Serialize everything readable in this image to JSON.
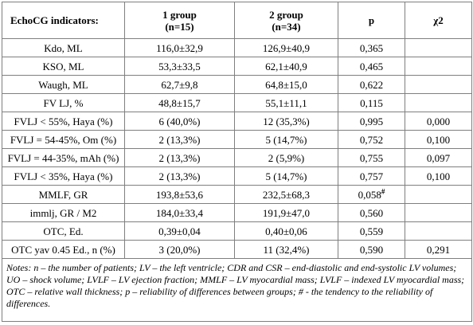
{
  "table": {
    "headers": [
      {
        "line1": "EchoCG indicators:",
        "line2": ""
      },
      {
        "line1": "1 group",
        "line2": "(n=15)"
      },
      {
        "line1": "2 group",
        "line2": "(n=34)"
      },
      {
        "line1": "p",
        "line2": ""
      },
      {
        "line1": "χ2",
        "line2": ""
      }
    ],
    "rows": [
      {
        "indicator": "Kdo, ML",
        "g1": "116,0±32,9",
        "g2": "126,9±40,9",
        "p": "0,365",
        "p_mark": "",
        "chi2": ""
      },
      {
        "indicator": "KSO, ML",
        "g1": "53,3±33,5",
        "g2": "62,1±40,9",
        "p": "0,465",
        "p_mark": "",
        "chi2": ""
      },
      {
        "indicator": "Waugh, ML",
        "g1": "62,7±9,8",
        "g2": "64,8±15,0",
        "p": "0,622",
        "p_mark": "",
        "chi2": ""
      },
      {
        "indicator": "FV LJ, %",
        "g1": "48,8±15,7",
        "g2": "55,1±11,1",
        "p": "0,115",
        "p_mark": "",
        "chi2": ""
      },
      {
        "indicator": "FVLJ < 55%, Haya (%)",
        "g1": "6 (40,0%)",
        "g2": "12 (35,3%)",
        "p": "0,995",
        "p_mark": "",
        "chi2": "0,000"
      },
      {
        "indicator": "FVLJ = 54-45%, Om (%)",
        "g1": "2 (13,3%)",
        "g2": "5 (14,7%)",
        "p": "0,752",
        "p_mark": "",
        "chi2": "0,100"
      },
      {
        "indicator": "FVLJ = 44-35%, mAh (%)",
        "g1": "2 (13,3%)",
        "g2": "2 (5,9%)",
        "p": "0,755",
        "p_mark": "",
        "chi2": "0,097"
      },
      {
        "indicator": "FVLJ < 35%, Haya (%)",
        "g1": "2 (13,3%)",
        "g2": "5 (14,7%)",
        "p": "0,757",
        "p_mark": "",
        "chi2": "0,100"
      },
      {
        "indicator": "MMLF, GR",
        "g1": "193,8±53,6",
        "g2": "232,5±68,3",
        "p": "0,058",
        "p_mark": "#",
        "chi2": ""
      },
      {
        "indicator": "immlj, GR / M2",
        "g1": "184,0±33,4",
        "g2": "191,9±47,0",
        "p": "0,560",
        "p_mark": "",
        "chi2": ""
      },
      {
        "indicator": "OTC, Ed.",
        "g1": "0,39±0,04",
        "g2": "0,40±0,06",
        "p": "0,559",
        "p_mark": "",
        "chi2": ""
      },
      {
        "indicator": "OTC yav 0.45 Ed., n (%)",
        "g1": "3 (20,0%)",
        "g2": "11 (32,4%)",
        "p": "0,590",
        "p_mark": "",
        "chi2": "0,291"
      }
    ],
    "notes": "Notes: n – the number of patients; LV – the left ventricle; CDR and CSR – end-diastolic and end-systolic LV volumes; UO – shock volume; LVLF – LV ejection fraction; MMLF – LV myocardial mass; LVLF – indexed LV myocardial mass; OTC – relative wall thickness; p – reliability of differences between groups;   # - the tendency to the reliability of differences."
  }
}
